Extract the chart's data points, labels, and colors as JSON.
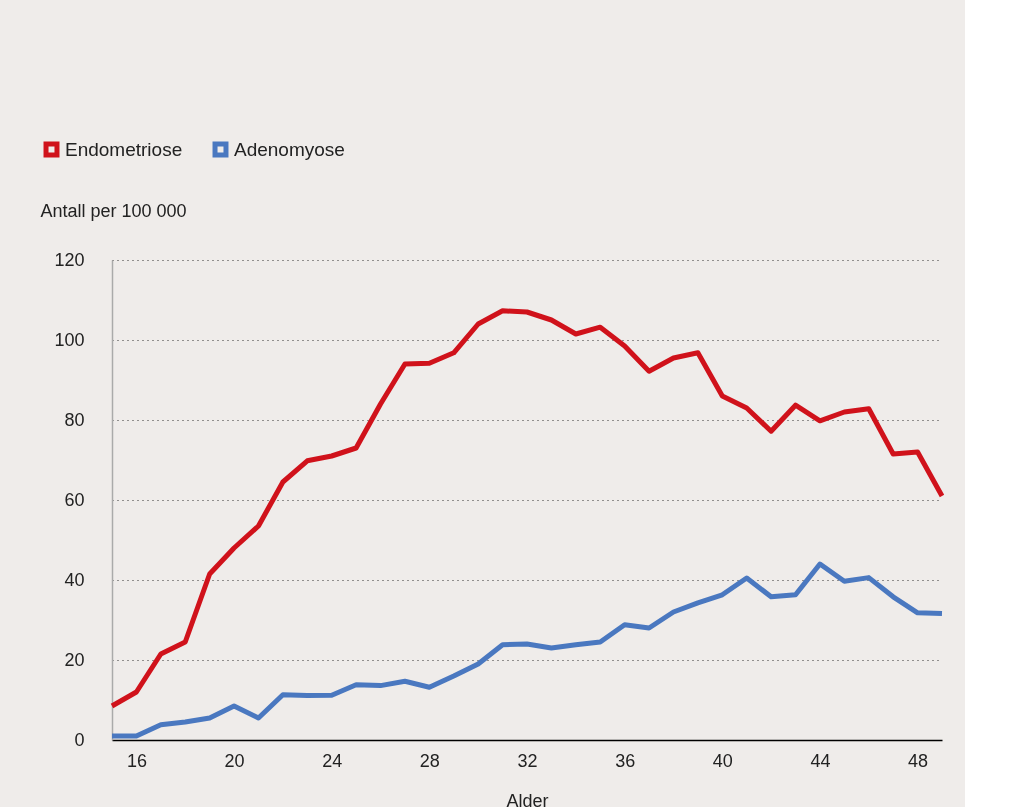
{
  "chart_data": {
    "type": "line",
    "xlabel": "Alder",
    "ylabel": "Antall per 100 000",
    "x": [
      15,
      16,
      17,
      18,
      19,
      20,
      21,
      22,
      23,
      24,
      25,
      26,
      27,
      28,
      29,
      30,
      31,
      32,
      33,
      34,
      35,
      36,
      37,
      38,
      39,
      40,
      41,
      42,
      43,
      44,
      45,
      46,
      47,
      48,
      49
    ],
    "series": [
      {
        "name": "Endometriose",
        "color": "#d0121b",
        "values": [
          8.5,
          12,
          21.5,
          24.5,
          41.5,
          48,
          53.5,
          64.5,
          69.8,
          71,
          73,
          84,
          94,
          94.2,
          96.8,
          104,
          107.3,
          107,
          105,
          101.5,
          103.2,
          98.5,
          92.2,
          95.5,
          96.8,
          86,
          83,
          77.2,
          83.7,
          79.8,
          82,
          82.8,
          71.5,
          72,
          61
        ]
      },
      {
        "name": "Adenomyose",
        "color": "#4a78c0",
        "values": [
          1,
          1,
          3.8,
          4.5,
          5.5,
          8.5,
          5.5,
          11.3,
          11.1,
          11.2,
          13.8,
          13.6,
          14.7,
          13.2,
          16,
          19,
          23.8,
          24,
          23,
          23.8,
          24.5,
          28.8,
          28,
          32,
          34.3,
          36.3,
          40.5,
          35.8,
          36.3,
          44,
          39.7,
          40.6,
          35.8,
          31.8,
          31.6
        ]
      }
    ],
    "xlim": [
      15,
      49
    ],
    "xticks": [
      16,
      20,
      24,
      28,
      32,
      36,
      40,
      44,
      48
    ],
    "ylim": [
      0,
      120
    ],
    "yticks": [
      0,
      20,
      40,
      60,
      80,
      100,
      120
    ],
    "grid": "y",
    "legend": "top left",
    "marker": "none",
    "line_style": "solid"
  }
}
